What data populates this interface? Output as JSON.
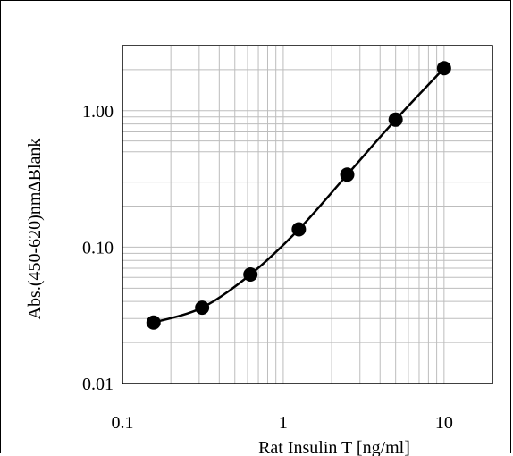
{
  "chart_data": {
    "type": "scatter",
    "title": "",
    "xlabel": "Rat Insulin T [ng/ml]",
    "ylabel": "Abs.(450-620)nm∆Blank",
    "x_scale": "log",
    "y_scale": "log",
    "xlim": [
      0.1,
      20
    ],
    "ylim": [
      0.01,
      3
    ],
    "x_ticks": [
      {
        "value": 0.1,
        "label": "0.1"
      },
      {
        "value": 1,
        "label": "1"
      },
      {
        "value": 10,
        "label": "10"
      }
    ],
    "y_ticks": [
      {
        "value": 0.01,
        "label": "0.01"
      },
      {
        "value": 0.1,
        "label": "0.10"
      },
      {
        "value": 1,
        "label": "1.00"
      }
    ],
    "grid": true,
    "legend": "none",
    "series": [
      {
        "x": [
          0.156,
          0.313,
          0.625,
          1.25,
          2.5,
          5,
          10
        ],
        "y": [
          0.028,
          0.036,
          0.063,
          0.135,
          0.34,
          0.86,
          2.05
        ],
        "marker": "circle",
        "line": "smooth",
        "color": "#000000"
      }
    ]
  }
}
